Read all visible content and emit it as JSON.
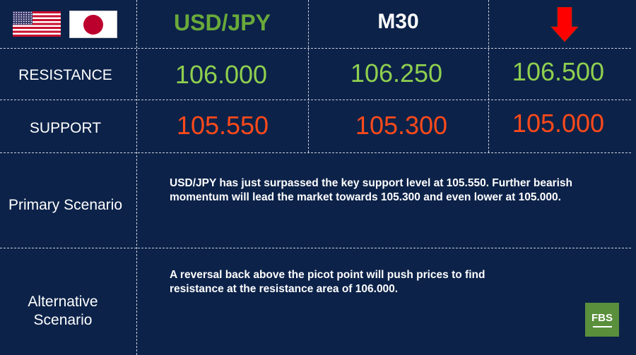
{
  "header": {
    "pair": "USD/JPY",
    "timeframe": "M30",
    "direction_icon": "red-arrow-down-icon",
    "flags": [
      "us-flag-icon",
      "japan-flag-icon"
    ]
  },
  "rows": {
    "resistance": {
      "label": "RESISTANCE",
      "values": [
        "106.000",
        "106.250",
        "106.500"
      ]
    },
    "support": {
      "label": "SUPPORT",
      "values": [
        "105.550",
        "105.300",
        "105.000"
      ]
    }
  },
  "scenarios": {
    "primary": {
      "label": "Primary Scenario",
      "text": "USD/JPY has just surpassed the key support level at 105.550. Further bearish momentum will lead the market towards 105.300 and even lower at 105.000."
    },
    "alternative": {
      "label_line1": "Alternative",
      "label_line2": "Scenario",
      "text": "A reversal back above the picot point will push prices to find resistance at the resistance area of 106.000."
    }
  },
  "logo": {
    "text": "FBS"
  },
  "colors": {
    "background": "#0c2249",
    "resistance": "#8fcf4f",
    "support": "#ff4a1a",
    "pair": "#6aaa3a",
    "arrow": "#ff0000",
    "logo": "#5a8f3c"
  }
}
